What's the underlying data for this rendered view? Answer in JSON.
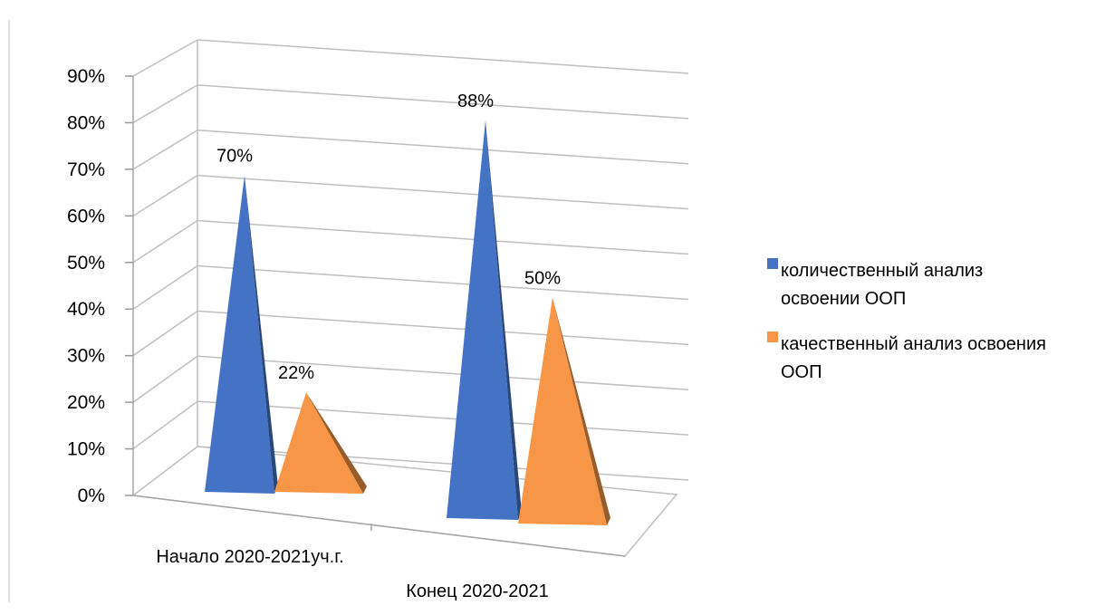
{
  "chart_data": {
    "type": "bar",
    "style": "3d-pyramid",
    "categories": [
      "Начало 2020-2021уч.г.",
      "Конец 2020-2021"
    ],
    "series": [
      {
        "name": "количественный анализ освоении ООП",
        "values": [
          70,
          88
        ],
        "labels": [
          "70%",
          "88%"
        ],
        "color": "#4472c4"
      },
      {
        "name": "качественный анализ освоения ООП",
        "values": [
          22,
          50
        ],
        "labels": [
          "22%",
          "50%"
        ],
        "color": "#f79646"
      }
    ],
    "ylim": [
      0,
      90
    ],
    "yticks": [
      "0%",
      "10%",
      "20%",
      "30%",
      "40%",
      "50%",
      "60%",
      "70%",
      "80%",
      "90%"
    ],
    "grid": true,
    "legend": "right"
  }
}
